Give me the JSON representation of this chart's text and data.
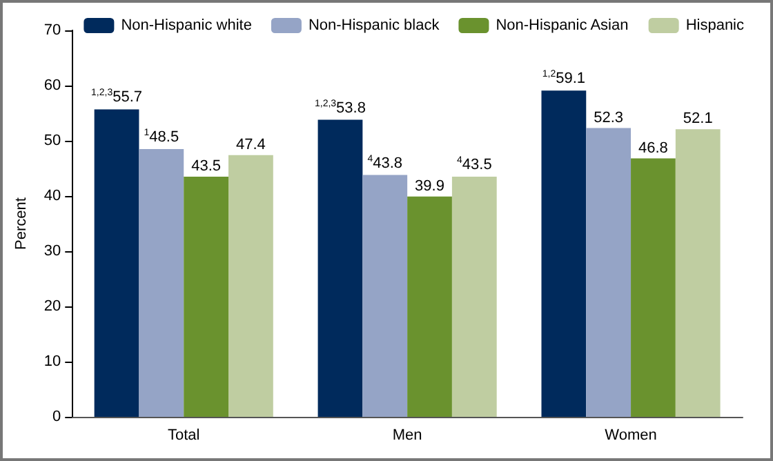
{
  "chart_data": {
    "type": "bar",
    "ylabel": "Percent",
    "categories": [
      "Total",
      "Men",
      "Women"
    ],
    "series": [
      {
        "name": "Non-Hispanic white",
        "color": "#002a5c",
        "values": [
          55.7,
          53.8,
          59.1
        ],
        "value_labels": [
          "$^{1,2,3}$55.7",
          "$^{1,2,3}$53.8",
          "$^{1,2}$59.1"
        ]
      },
      {
        "name": "Non-Hispanic black",
        "color": "#95a4c6",
        "values": [
          48.5,
          43.8,
          52.3
        ],
        "value_labels": [
          "$^{1}$48.5",
          "$^{4}$43.8",
          "52.3"
        ]
      },
      {
        "name": "Non-Hispanic Asian",
        "color": "#6a922e",
        "values": [
          43.5,
          39.9,
          46.8
        ],
        "value_labels": [
          "43.5",
          "39.9",
          "46.8"
        ]
      },
      {
        "name": "Hispanic",
        "color": "#bfcda1",
        "values": [
          47.4,
          43.5,
          52.1
        ],
        "value_labels": [
          "47.4",
          "$^{4}$43.5",
          "52.1"
        ]
      }
    ],
    "ylim": [
      0,
      70
    ],
    "yticks": [
      0,
      10,
      20,
      30,
      40,
      50,
      60,
      70
    ],
    "grid": false,
    "legend": "top right"
  }
}
